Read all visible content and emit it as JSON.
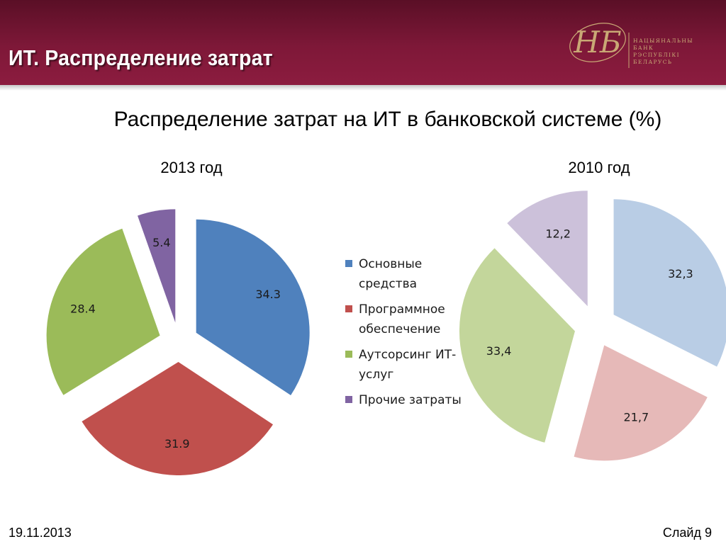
{
  "slide": {
    "title": "ИТ. Распределение затрат",
    "subtitle": "Распределение затрат на ИТ в банковской системе (%)",
    "date": "19.11.2013",
    "slide_number": "Слайд 9"
  },
  "logo": {
    "monogram": "НБ",
    "text_lines": [
      "НАЦЫЯНАЛЬНЫ",
      "БАНК",
      "РЭСПУБЛІКІ",
      "БЕЛАРУСЬ"
    ],
    "color": "#c9a875"
  },
  "colors": {
    "header": "#7e1838",
    "series_2013": [
      "#4f81bd",
      "#c0504d",
      "#9bbb59",
      "#8064a2"
    ],
    "series_2010": [
      "#b9cde5",
      "#e6b9b8",
      "#c3d69b",
      "#ccc1da"
    ]
  },
  "chart_data": [
    {
      "type": "pie",
      "title": "2013 год",
      "categories": [
        "Основные средства",
        "Программное обеспечение",
        "Аутсорсинг ИТ-услуг",
        "Прочие затраты"
      ],
      "values": [
        34.3,
        31.9,
        28.4,
        5.4
      ],
      "labels": [
        "34.3",
        "31.9",
        "28.4",
        "5.4"
      ],
      "exploded": true,
      "legend": "center"
    },
    {
      "type": "pie",
      "title": "2010 год",
      "categories": [
        "Основные средства",
        "Программное обеспечение",
        "Аутсорсинг ИТ-услуг",
        "Прочие затраты"
      ],
      "values": [
        32.3,
        21.7,
        33.4,
        12.2
      ],
      "labels": [
        "32,3",
        "21,7",
        "33,4",
        "12,2"
      ],
      "exploded": true
    }
  ],
  "legend": {
    "items": [
      {
        "line1": "Основные",
        "line2": "средства"
      },
      {
        "line1": "Программное",
        "line2": "обеспечение"
      },
      {
        "line1": "Аутсорсинг ИТ-",
        "line2": "услуг"
      },
      {
        "line1": "Прочие затраты",
        "line2": ""
      }
    ]
  }
}
